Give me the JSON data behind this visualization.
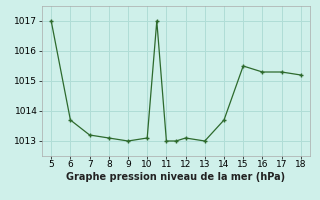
{
  "x": [
    5,
    6,
    7,
    8,
    9,
    10,
    10.5,
    11,
    11.5,
    12,
    13,
    14,
    15,
    16,
    17,
    18
  ],
  "y": [
    1017.0,
    1013.7,
    1013.2,
    1013.1,
    1013.0,
    1013.1,
    1017.0,
    1013.0,
    1013.0,
    1013.1,
    1013.0,
    1013.7,
    1015.5,
    1015.3,
    1015.3,
    1015.2
  ],
  "line_color": "#2d6a2d",
  "marker": "+",
  "background_color": "#cff0ea",
  "grid_color": "#b0ddd6",
  "xlabel": "Graphe pression niveau de la mer (hPa)",
  "xlabel_fontsize": 7,
  "xlim": [
    4.5,
    18.5
  ],
  "ylim": [
    1012.5,
    1017.5
  ],
  "yticks": [
    1013,
    1014,
    1015,
    1016,
    1017
  ],
  "xticks": [
    5,
    6,
    7,
    8,
    9,
    10,
    11,
    12,
    13,
    14,
    15,
    16,
    17,
    18
  ],
  "tick_fontsize": 6.5
}
